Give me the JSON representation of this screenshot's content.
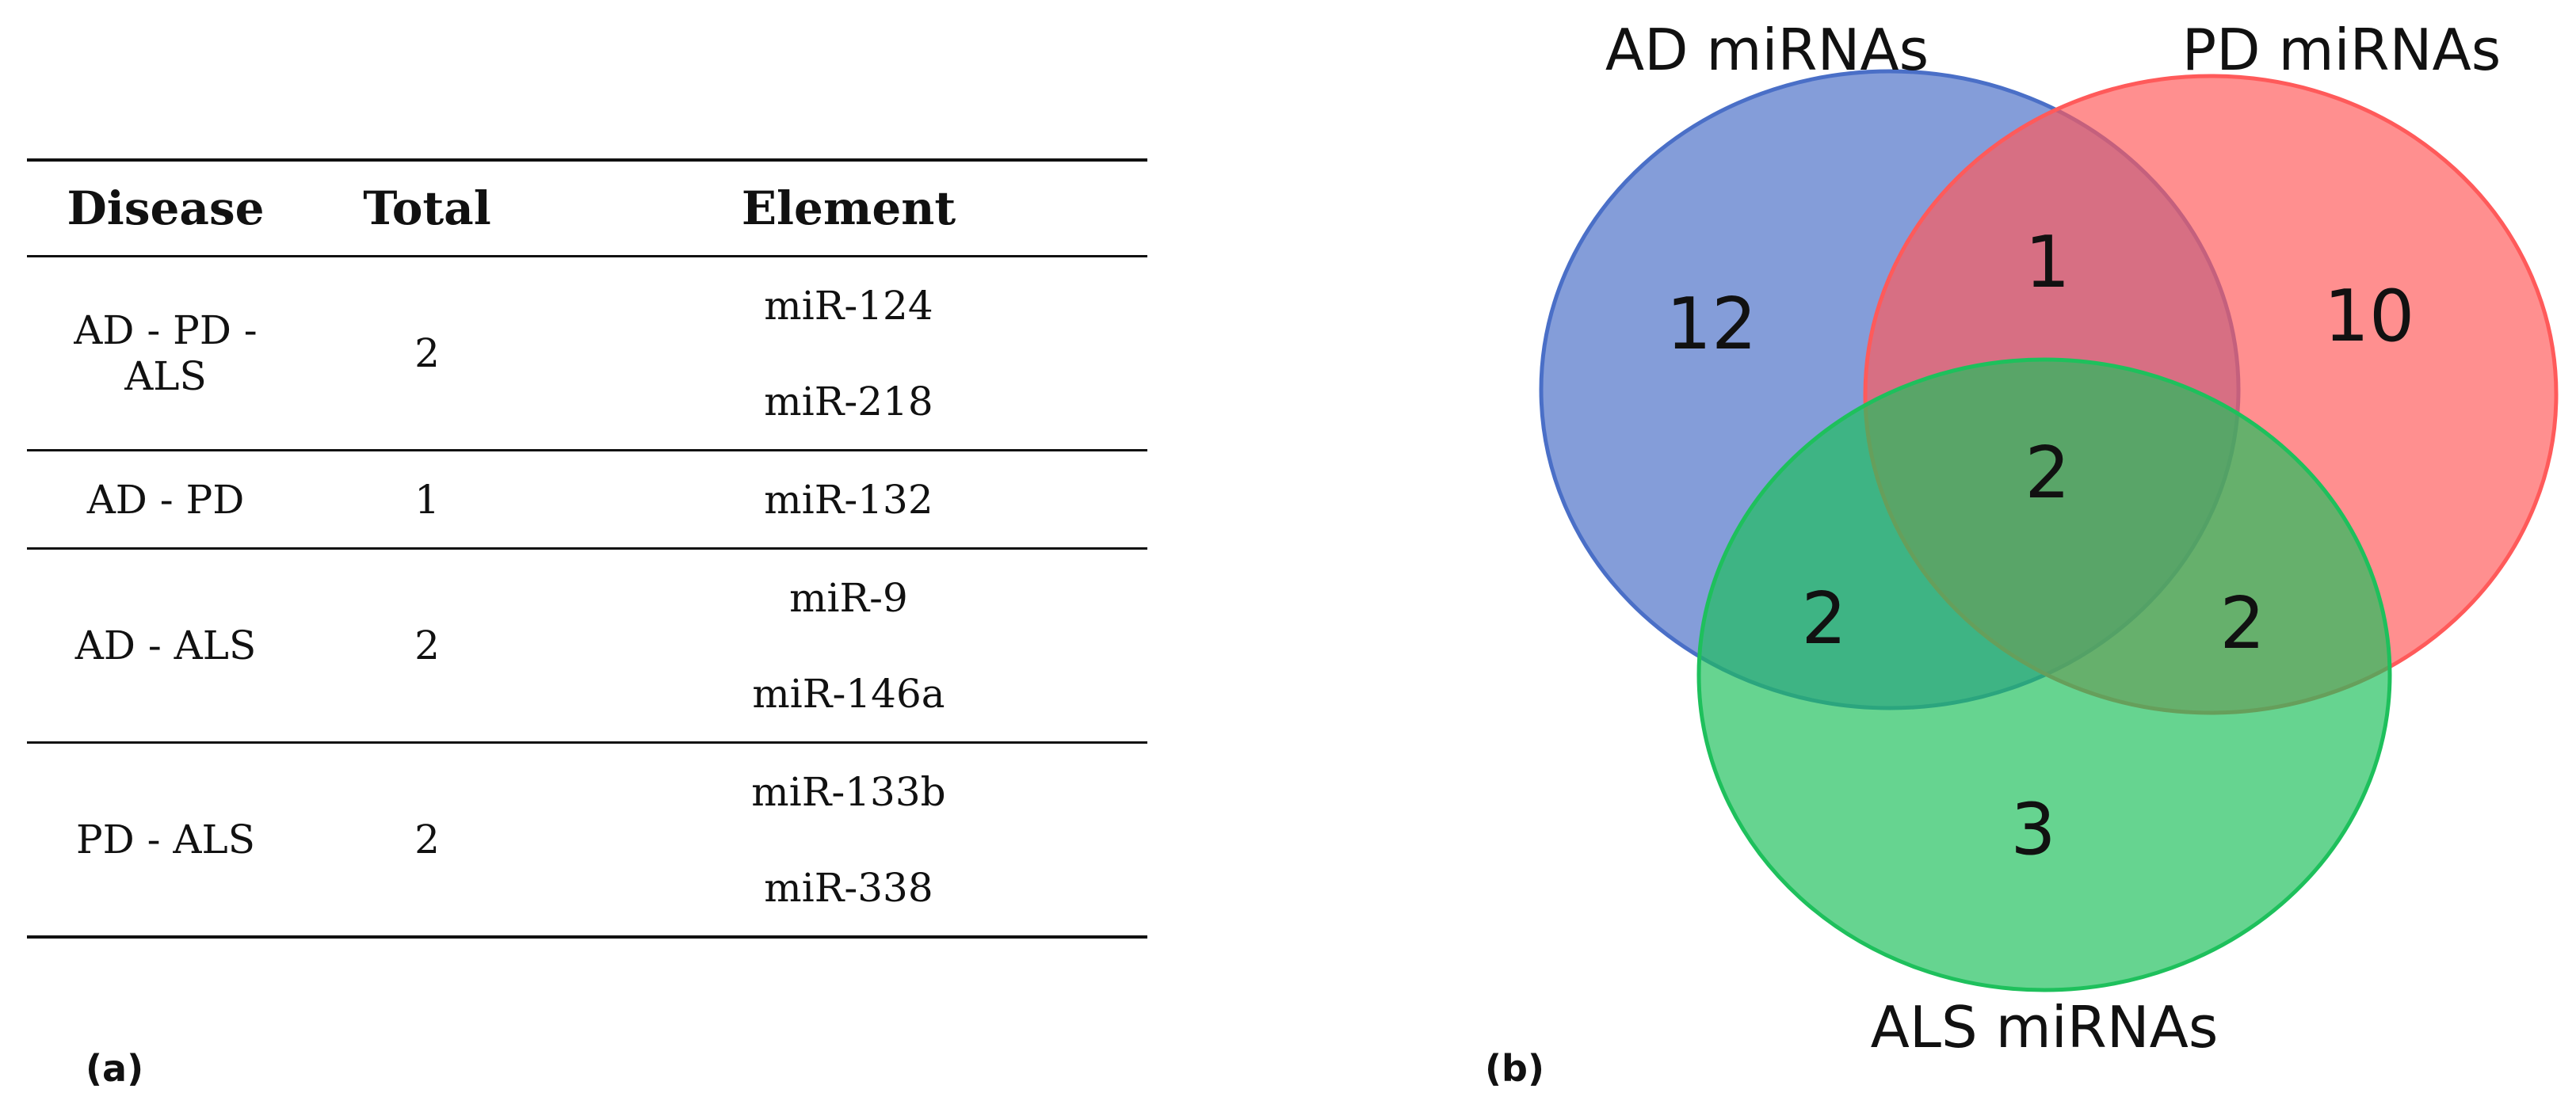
{
  "panel_a": {
    "letter": "(a)",
    "headers": {
      "disease": "Disease",
      "total": "Total",
      "element": "Element"
    },
    "rows": [
      {
        "disease": "AD - PD - ALS",
        "total": "2",
        "elements": [
          "miR-124",
          "miR-218"
        ]
      },
      {
        "disease": "AD - PD",
        "total": "1",
        "elements": [
          "miR-132"
        ]
      },
      {
        "disease": "AD - ALS",
        "total": "2",
        "elements": [
          "miR-9",
          "miR-146a"
        ]
      },
      {
        "disease": "PD - ALS",
        "total": "2",
        "elements": [
          "miR-133b",
          "miR-338"
        ]
      }
    ]
  },
  "panel_b": {
    "letter": "(b)",
    "sets": {
      "ad": {
        "label": "AD miRNAs",
        "color": "#4a6fc7"
      },
      "pd": {
        "label": "PD miRNAs",
        "color": "#ff5a5a"
      },
      "als": {
        "label": "ALS miRNAs",
        "color": "#1ec05c"
      }
    },
    "counts": {
      "ad_only": "12",
      "pd_only": "10",
      "als_only": "3",
      "ad_pd": "1",
      "ad_als": "2",
      "pd_als": "2",
      "ad_pd_als": "2"
    }
  }
}
